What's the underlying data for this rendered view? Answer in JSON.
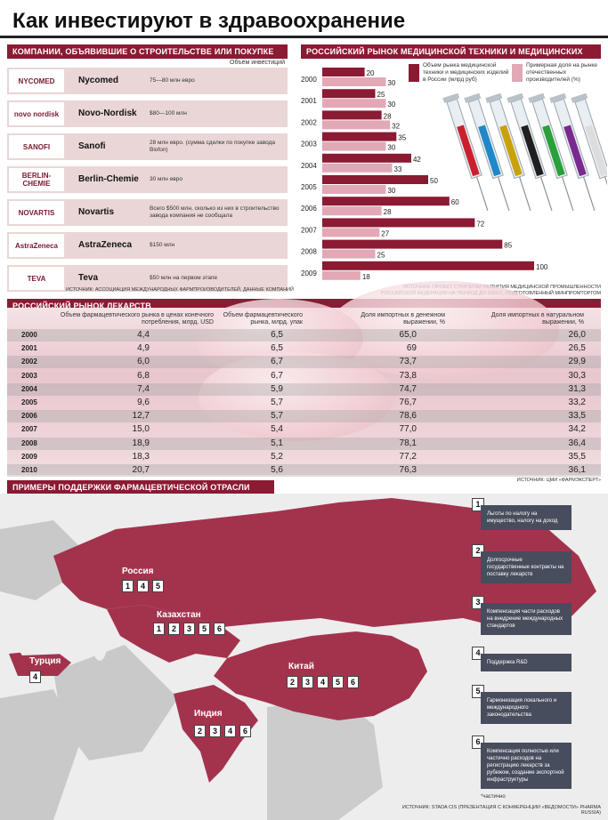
{
  "title": "Как инвестируют в здравоохранение",
  "companies": {
    "header": "КОМПАНИИ, ОБЪЯВИВШИЕ О СТРОИТЕЛЬСТВЕ ИЛИ ПОКУПКЕ ЗАВОДОВ",
    "units": "Объем инвестиций",
    "rows": [
      {
        "logo": "NYCOMED",
        "name": "Nycomed",
        "investment": "75—80 млн евро"
      },
      {
        "logo": "novo nordisk",
        "name": "Novo-Nordisk",
        "investment": "$80—100 млн"
      },
      {
        "logo": "SANOFI",
        "name": "Sanofi",
        "investment": "28 млн евро. (сумма сделки по покупке завода Biofon)"
      },
      {
        "logo": "BERLIN-CHEMIE",
        "name": "Berlin-Chemie",
        "investment": "30 млн евро"
      },
      {
        "logo": "NOVARTIS",
        "name": "Novartis",
        "investment": "Всего $500 млн, сколько из них в строительство завода компания не сообщала"
      },
      {
        "logo": "AstraZeneca",
        "name": "AstraZeneca",
        "investment": "$150 млн"
      },
      {
        "logo": "TEVA",
        "name": "Teva",
        "investment": "$50 млн на первом этапе"
      }
    ],
    "source": "ИСТОЧНИК: АССОЦИАЦИЯ МЕЖДУНАРОДНЫХ ФАРМПРОИЗВОДИТЕЛЕЙ, ДАННЫЕ КОМПАНИЙ"
  },
  "med_market": {
    "header": "РОССИЙСКИЙ РЫНОК МЕДИЦИНСКОЙ ТЕХНИКИ И МЕДИЦИНСКИХ ИЗДЕЛИЙ",
    "source": "ИСТОЧНИК: ПРОЕКТ СТРАТЕГИИ РАЗВИТИЯ МЕДИЦИНСКОЙ ПРОМЫШЛЕННОСТИ РОССИЙСКОЙ ФЕДЕРАЦИИ НА ПЕРИОД ДО 2020 Г., ПОДГОТОВЛЕННЫЙ МИНПРОМТОРГОМ",
    "colors": {
      "volume": "#8b1a33",
      "share": "#e2a8b6"
    }
  },
  "chart_data": [
    {
      "type": "bar",
      "orientation": "horizontal",
      "categories": [
        "2000",
        "2001",
        "2002",
        "2003",
        "2004",
        "2005",
        "2006",
        "2007",
        "2008",
        "2009"
      ],
      "series": [
        {
          "name": "Объем рынка медицинской техники и медицинских изделий в России (млрд руб)",
          "values": [
            20,
            25,
            28,
            35,
            42,
            50,
            60,
            72,
            85,
            100
          ]
        },
        {
          "name": "Примерная доля на рынке отечественных производителей (%)",
          "values": [
            30,
            30,
            32,
            30,
            33,
            30,
            28,
            27,
            25,
            18
          ]
        }
      ],
      "xlim": [
        0,
        100
      ]
    },
    {
      "type": "table",
      "title": "РОССИЙСКИЙ РЫНОК ЛЕКАРСТВ",
      "columns": [
        "",
        "Объем фармацевтического рынка в ценах конечного потребления, млрд. USD",
        "Объем фармацевтического рынка, млрд. упак",
        "Доля импортных в денежном выражении, %",
        "Доля импортных в натуральном выражении, %"
      ],
      "rows": [
        [
          "2000",
          "4,4",
          "6,5",
          "65,0",
          "26,0"
        ],
        [
          "2001",
          "4,9",
          "6,5",
          "69",
          "26,5"
        ],
        [
          "2002",
          "6,0",
          "6,7",
          "73,7",
          "29,9"
        ],
        [
          "2003",
          "6,8",
          "6,7",
          "73,8",
          "30,3"
        ],
        [
          "2004",
          "7,4",
          "5,9",
          "74,7",
          "31,3"
        ],
        [
          "2005",
          "9,6",
          "5,7",
          "76,7",
          "33,2"
        ],
        [
          "2006",
          "12,7",
          "5,7",
          "78,6",
          "33,5"
        ],
        [
          "2007",
          "15,0",
          "5,4",
          "77,0",
          "34,2"
        ],
        [
          "2008",
          "18,9",
          "5,1",
          "78,1",
          "36,4"
        ],
        [
          "2009",
          "18,3",
          "5,2",
          "77,2",
          "35,5"
        ],
        [
          "2010",
          "20,7",
          "5,6",
          "76,3",
          "36,1"
        ]
      ],
      "source": "ИСТОЧНИК: ЦМИ «ФАРМЭКСПЕРТ»"
    }
  ],
  "support": {
    "header": "ПРИМЕРЫ ПОДДЕРЖКИ ФАРМАЦЕВТИЧЕСКОЙ ОТРАСЛИ",
    "countries": [
      {
        "name": "Россия",
        "nums": [
          "1",
          "4",
          "5"
        ]
      },
      {
        "name": "Казахстан",
        "nums": [
          "1",
          "2",
          "3",
          "5",
          "6"
        ]
      },
      {
        "name": "Турция",
        "nums": [
          "4"
        ]
      },
      {
        "name": "Китай",
        "nums": [
          "2",
          "3",
          "4",
          "5",
          "6"
        ]
      },
      {
        "name": "Индия",
        "nums": [
          "2",
          "3",
          "4",
          "6"
        ]
      }
    ],
    "measures": [
      {
        "num": "1",
        "text": "Льготы по налогу на имущество, налогу на доход"
      },
      {
        "num": "2",
        "text": "Долгосрочные государственные контракты на поставку лекарств"
      },
      {
        "num": "3",
        "text": "Компенсация части расходов на внедрение международных стандартов"
      },
      {
        "num": "4",
        "text": "Поддержка R&D"
      },
      {
        "num": "5",
        "text": "Гармонизация локального и международного законодательства"
      },
      {
        "num": "6",
        "text": "Компенсация полностью или частично расходов на регистрацию лекарств за рубежом, создание экспортной инфраструктуры"
      }
    ],
    "footnote": "*частично",
    "source": "ИСТОЧНИК: STADA CIS (ПРЕЗЕНТАЦИЯ С КОНФЕРЕНЦИИ «ВЕДОМОСТИ» PHARMA RUSSIA)"
  }
}
